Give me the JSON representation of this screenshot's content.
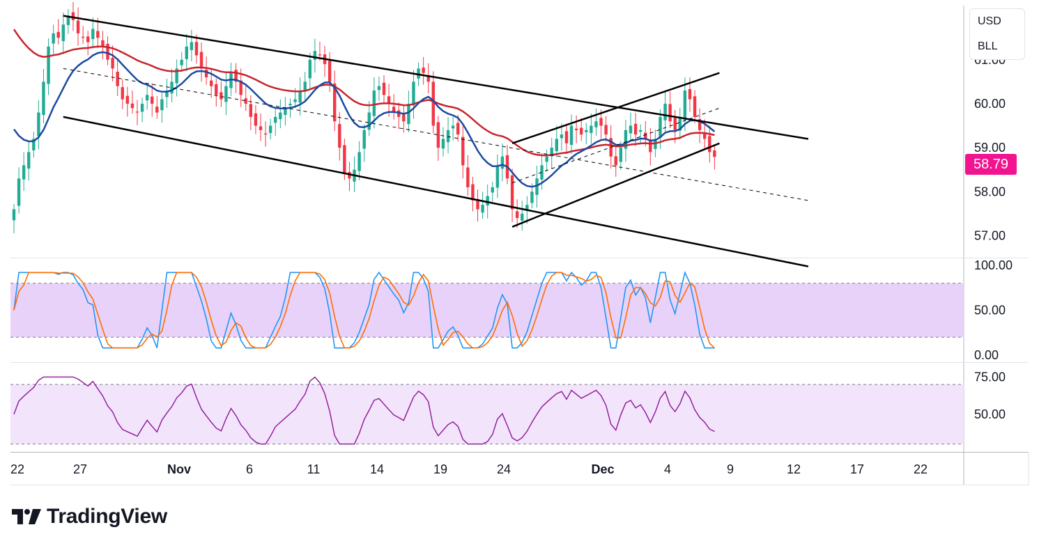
{
  "legend": {
    "line1": "USD",
    "line2": "BLL"
  },
  "last_price_label": "58.79",
  "brand": {
    "name": "TradingView"
  },
  "colors": {
    "up": "#22ab94",
    "down": "#f23645",
    "ma_fast": "#1a4aa0",
    "ma_slow": "#c8232c",
    "channel": "#000000",
    "stoch_k": "#2196f3",
    "stoch_d": "#ff6d00",
    "rsi": "#8e1599",
    "stoch_band": "#e8d2fa",
    "rsi_band": "#f2e4fb",
    "price_badge": "#f2138f"
  },
  "chart_data": [
    {
      "type": "candlestick",
      "panel": "price",
      "ylim": [
        56.5,
        62.2
      ],
      "y_ticks": [
        "61.00",
        "60.00",
        "59.00",
        "58.00",
        "57.00"
      ],
      "last_price": 58.79,
      "x_ticks": [
        "22",
        "27",
        "Nov",
        "6",
        "11",
        "14",
        "19",
        "24",
        "Dec",
        "4",
        "9",
        "12",
        "17",
        "22"
      ],
      "closes": [
        57.6,
        58.3,
        58.6,
        58.9,
        59.2,
        59.8,
        60.5,
        61.3,
        61.6,
        61.5,
        61.8,
        62.0,
        61.9,
        61.6,
        61.5,
        61.4,
        61.7,
        61.5,
        61.3,
        61.0,
        60.8,
        60.4,
        60.1,
        60.0,
        59.9,
        59.8,
        60.0,
        60.2,
        60.0,
        59.8,
        60.1,
        60.3,
        60.5,
        60.8,
        61.0,
        61.3,
        61.4,
        61.1,
        60.8,
        60.6,
        60.4,
        60.2,
        60.1,
        60.4,
        60.7,
        60.5,
        60.2,
        60.0,
        59.7,
        59.5,
        59.4,
        59.3,
        59.5,
        59.7,
        59.8,
        59.9,
        60.0,
        60.1,
        60.3,
        60.5,
        61.0,
        61.2,
        61.1,
        60.9,
        60.5,
        59.6,
        59.0,
        58.4,
        58.3,
        58.5,
        58.9,
        59.4,
        59.8,
        60.3,
        60.4,
        60.2,
        60.0,
        59.8,
        59.7,
        59.6,
        60.0,
        60.5,
        60.8,
        60.7,
        60.5,
        59.5,
        59.0,
        59.2,
        59.4,
        59.5,
        59.3,
        58.6,
        58.1,
        57.8,
        57.6,
        57.7,
        57.9,
        58.1,
        58.6,
        58.8,
        58.3,
        57.6,
        57.4,
        57.5,
        57.7,
        58.0,
        58.3,
        58.6,
        58.8,
        59.0,
        59.2,
        59.3,
        59.1,
        59.5,
        59.4,
        59.3,
        59.4,
        59.5,
        59.6,
        59.5,
        59.3,
        58.8,
        58.6,
        59.0,
        59.4,
        59.5,
        59.3,
        59.4,
        59.2,
        58.9,
        59.2,
        59.7,
        60.0,
        59.6,
        59.4,
        59.7,
        60.3,
        60.1,
        59.7,
        59.4,
        59.2,
        58.9,
        58.79
      ],
      "indicators": [
        {
          "kind": "moving_average",
          "color_key": "ma_slow"
        },
        {
          "kind": "moving_average",
          "color_key": "ma_fast"
        },
        {
          "kind": "descending_channel"
        },
        {
          "kind": "ascending_channel"
        }
      ]
    },
    {
      "type": "line",
      "panel": "stochastic",
      "ylim": [
        0,
        100
      ],
      "y_ticks": [
        "100.00",
        "50.00",
        "0.00"
      ],
      "bands": [
        20,
        80
      ]
    },
    {
      "type": "line",
      "panel": "rsi",
      "ylim": [
        28,
        78
      ],
      "y_ticks": [
        "75.00",
        "50.00"
      ],
      "bands": [
        30,
        70
      ]
    }
  ]
}
